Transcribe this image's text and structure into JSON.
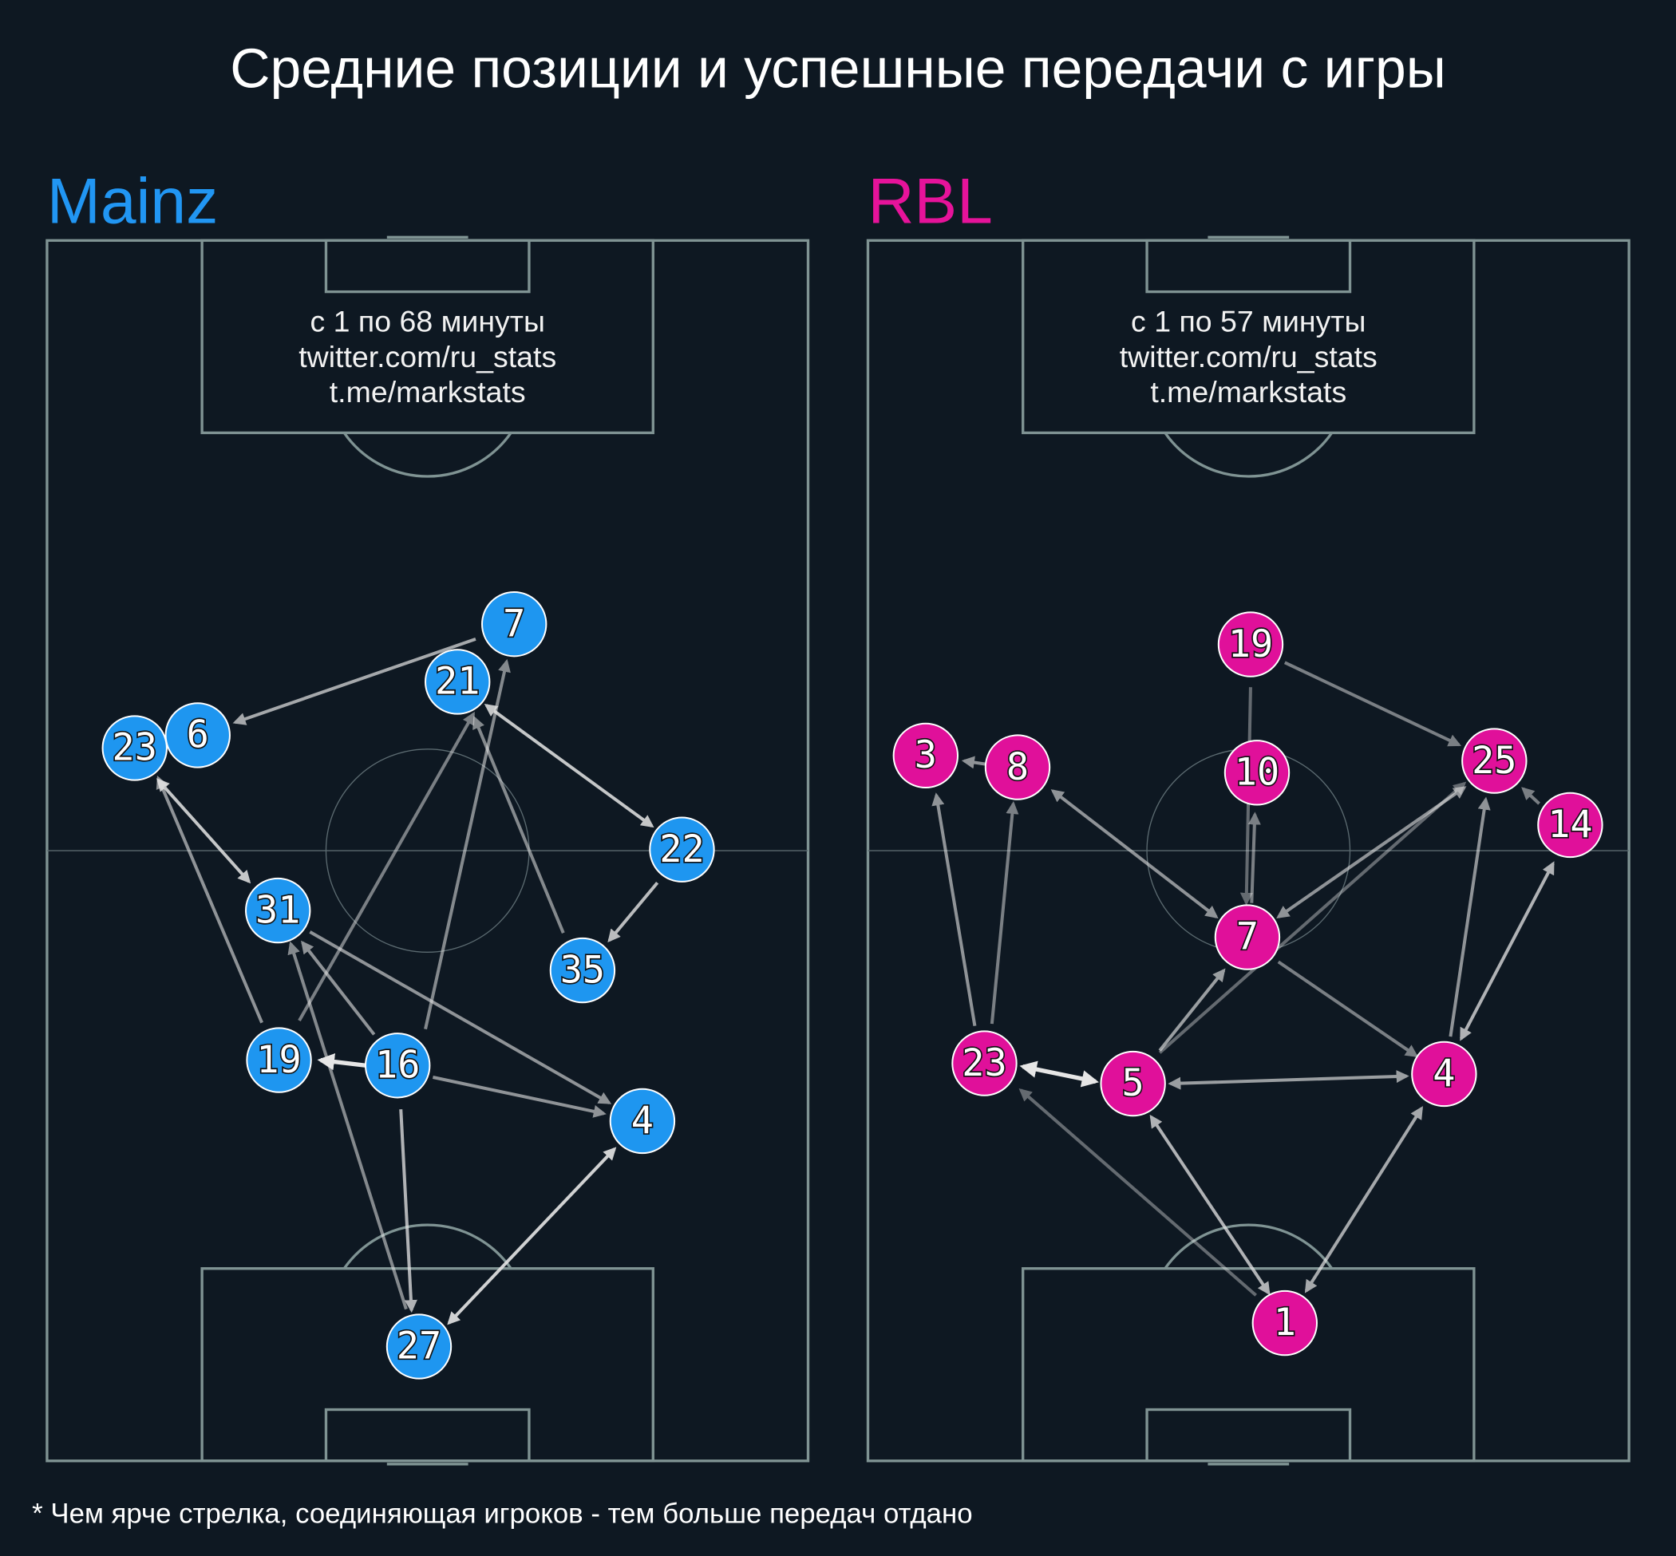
{
  "title": "Средние позиции и успешные передачи с игры",
  "teams": [
    {
      "name": "Mainz",
      "caption": [
        "с 1 по 68 минуты",
        "twitter.com/ru_stats",
        "t.me/markstats"
      ],
      "players": [
        "7",
        "21",
        "6",
        "23",
        "22",
        "31",
        "35",
        "19",
        "16",
        "4",
        "27"
      ]
    },
    {
      "name": "RBL",
      "caption": [
        "с 1 по 57 минуты",
        "twitter.com/ru_stats",
        "t.me/markstats"
      ],
      "players": [
        "19",
        "3",
        "8",
        "10",
        "25",
        "14",
        "7",
        "23",
        "5",
        "4",
        "1"
      ]
    }
  ],
  "footnote": "* Чем ярче стрелка, соединяющая игроков - тем больше передач отдано"
}
